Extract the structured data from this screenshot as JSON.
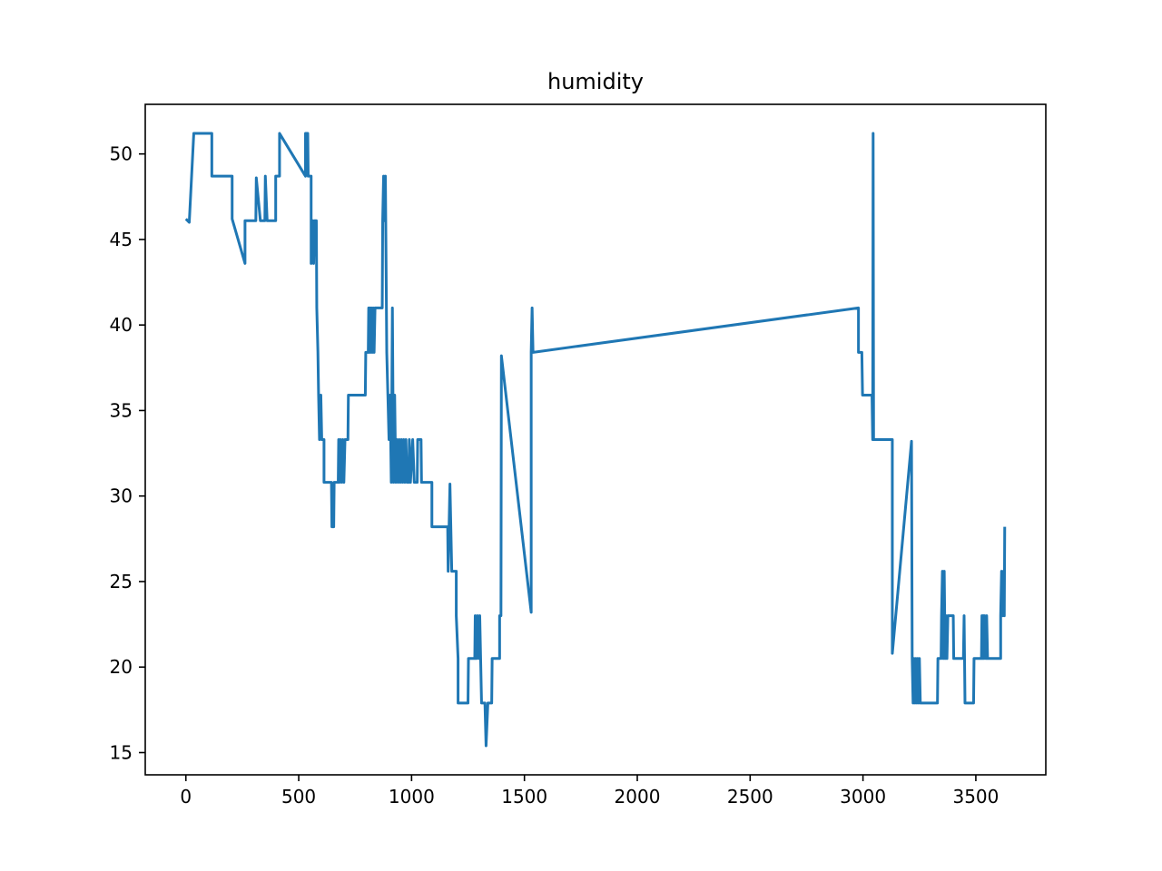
{
  "chart_data": {
    "type": "line",
    "title": "humidity",
    "xlabel": "",
    "ylabel": "",
    "xlim": [
      -180,
      3810
    ],
    "ylim": [
      13.7,
      52.9
    ],
    "xticks": [
      0,
      500,
      1000,
      1500,
      2000,
      2500,
      3000,
      3500
    ],
    "yticks": [
      15,
      20,
      25,
      30,
      35,
      40,
      45,
      50
    ],
    "grid": false,
    "legend": "none",
    "series": [
      {
        "color": "#1f77b4",
        "points": [
          [
            0,
            46.2
          ],
          [
            15,
            46.0
          ],
          [
            35,
            51.2
          ],
          [
            115,
            51.2
          ],
          [
            115,
            48.7
          ],
          [
            205,
            48.7
          ],
          [
            205,
            46.2
          ],
          [
            262,
            43.6
          ],
          [
            262,
            46.1
          ],
          [
            310,
            46.1
          ],
          [
            312,
            48.6
          ],
          [
            330,
            46.1
          ],
          [
            350,
            46.1
          ],
          [
            352,
            48.7
          ],
          [
            360,
            46.1
          ],
          [
            398,
            46.1
          ],
          [
            398,
            48.7
          ],
          [
            415,
            48.7
          ],
          [
            415,
            51.2
          ],
          [
            530,
            48.7
          ],
          [
            530,
            51.2
          ],
          [
            540,
            51.2
          ],
          [
            542,
            48.7
          ],
          [
            555,
            48.7
          ],
          [
            555,
            43.6
          ],
          [
            562,
            46.1
          ],
          [
            566,
            43.6
          ],
          [
            570,
            46.1
          ],
          [
            578,
            46.1
          ],
          [
            580,
            41.0
          ],
          [
            585,
            38.4
          ],
          [
            588,
            35.9
          ],
          [
            592,
            33.3
          ],
          [
            598,
            35.9
          ],
          [
            602,
            33.3
          ],
          [
            612,
            33.3
          ],
          [
            612,
            30.8
          ],
          [
            645,
            30.8
          ],
          [
            647,
            28.2
          ],
          [
            655,
            28.2
          ],
          [
            657,
            30.8
          ],
          [
            675,
            30.8
          ],
          [
            677,
            33.3
          ],
          [
            680,
            30.8
          ],
          [
            685,
            33.3
          ],
          [
            690,
            30.8
          ],
          [
            695,
            33.3
          ],
          [
            700,
            30.8
          ],
          [
            705,
            33.3
          ],
          [
            718,
            33.3
          ],
          [
            720,
            35.9
          ],
          [
            795,
            35.9
          ],
          [
            797,
            38.4
          ],
          [
            808,
            38.4
          ],
          [
            810,
            41.0
          ],
          [
            812,
            38.4
          ],
          [
            815,
            41.0
          ],
          [
            818,
            38.4
          ],
          [
            822,
            41.0
          ],
          [
            826,
            38.4
          ],
          [
            830,
            41.0
          ],
          [
            834,
            38.4
          ],
          [
            838,
            41.0
          ],
          [
            870,
            41.0
          ],
          [
            872,
            46.1
          ],
          [
            876,
            48.7
          ],
          [
            880,
            46.1
          ],
          [
            884,
            48.7
          ],
          [
            890,
            38.4
          ],
          [
            895,
            35.9
          ],
          [
            900,
            33.3
          ],
          [
            905,
            35.9
          ],
          [
            910,
            30.8
          ],
          [
            915,
            41.0
          ],
          [
            920,
            30.8
          ],
          [
            925,
            35.9
          ],
          [
            930,
            30.8
          ],
          [
            935,
            33.3
          ],
          [
            940,
            30.8
          ],
          [
            945,
            33.3
          ],
          [
            950,
            30.8
          ],
          [
            955,
            33.3
          ],
          [
            960,
            30.8
          ],
          [
            965,
            33.3
          ],
          [
            970,
            30.8
          ],
          [
            975,
            33.3
          ],
          [
            980,
            30.8
          ],
          [
            988,
            30.8
          ],
          [
            990,
            33.3
          ],
          [
            995,
            30.8
          ],
          [
            1005,
            33.3
          ],
          [
            1012,
            30.8
          ],
          [
            1025,
            30.8
          ],
          [
            1027,
            33.3
          ],
          [
            1042,
            33.3
          ],
          [
            1044,
            30.8
          ],
          [
            1090,
            30.8
          ],
          [
            1090,
            28.2
          ],
          [
            1160,
            28.2
          ],
          [
            1162,
            25.6
          ],
          [
            1170,
            30.7
          ],
          [
            1178,
            25.6
          ],
          [
            1198,
            25.6
          ],
          [
            1198,
            23.0
          ],
          [
            1206,
            20.5
          ],
          [
            1206,
            17.9
          ],
          [
            1250,
            17.9
          ],
          [
            1252,
            20.5
          ],
          [
            1280,
            20.5
          ],
          [
            1282,
            23.0
          ],
          [
            1287,
            20.5
          ],
          [
            1292,
            23.0
          ],
          [
            1298,
            20.5
          ],
          [
            1302,
            23.0
          ],
          [
            1310,
            17.9
          ],
          [
            1325,
            17.9
          ],
          [
            1330,
            15.4
          ],
          [
            1338,
            17.9
          ],
          [
            1355,
            17.9
          ],
          [
            1357,
            20.5
          ],
          [
            1390,
            20.5
          ],
          [
            1390,
            23.0
          ],
          [
            1396,
            23.0
          ],
          [
            1398,
            38.2
          ],
          [
            1530,
            23.2
          ],
          [
            1530,
            38.4
          ],
          [
            1534,
            41.0
          ],
          [
            1538,
            38.4
          ],
          [
            2980,
            41.0
          ],
          [
            2980,
            38.4
          ],
          [
            2995,
            38.4
          ],
          [
            2998,
            35.9
          ],
          [
            3040,
            35.9
          ],
          [
            3043,
            33.3
          ],
          [
            3045,
            51.2
          ],
          [
            3047,
            33.3
          ],
          [
            3130,
            33.3
          ],
          [
            3130,
            20.8
          ],
          [
            3215,
            33.2
          ],
          [
            3218,
            20.5
          ],
          [
            3222,
            17.9
          ],
          [
            3226,
            20.5
          ],
          [
            3230,
            17.9
          ],
          [
            3234,
            20.5
          ],
          [
            3238,
            17.9
          ],
          [
            3242,
            20.5
          ],
          [
            3246,
            17.9
          ],
          [
            3250,
            20.5
          ],
          [
            3254,
            17.9
          ],
          [
            3330,
            17.9
          ],
          [
            3332,
            20.5
          ],
          [
            3346,
            20.5
          ],
          [
            3348,
            23.0
          ],
          [
            3352,
            25.6
          ],
          [
            3356,
            20.5
          ],
          [
            3360,
            25.6
          ],
          [
            3364,
            20.5
          ],
          [
            3368,
            23.0
          ],
          [
            3372,
            20.5
          ],
          [
            3376,
            23.0
          ],
          [
            3400,
            23.0
          ],
          [
            3402,
            20.5
          ],
          [
            3445,
            20.5
          ],
          [
            3448,
            23.0
          ],
          [
            3452,
            17.9
          ],
          [
            3490,
            17.9
          ],
          [
            3492,
            20.5
          ],
          [
            3525,
            20.5
          ],
          [
            3527,
            23.0
          ],
          [
            3530,
            20.5
          ],
          [
            3533,
            23.0
          ],
          [
            3536,
            20.5
          ],
          [
            3539,
            23.0
          ],
          [
            3545,
            20.5
          ],
          [
            3548,
            23.0
          ],
          [
            3552,
            20.5
          ],
          [
            3610,
            20.5
          ],
          [
            3610,
            23.0
          ],
          [
            3614,
            25.6
          ],
          [
            3618,
            23.0
          ],
          [
            3622,
            25.6
          ],
          [
            3626,
            23.0
          ],
          [
            3628,
            28.2
          ]
        ]
      }
    ]
  }
}
